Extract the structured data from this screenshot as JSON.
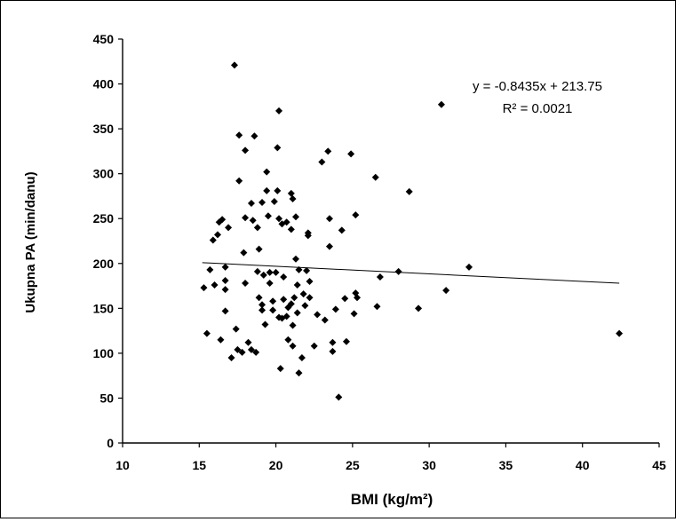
{
  "chart_data": {
    "type": "scatter",
    "title": "",
    "xlabel": "BMI (kg/m²)",
    "ylabel": "Ukupna PA (min/danu)",
    "xlim": [
      10,
      45
    ],
    "ylim": [
      0,
      450
    ],
    "xticks": [
      10,
      15,
      20,
      25,
      30,
      35,
      40,
      45
    ],
    "yticks": [
      0,
      50,
      100,
      150,
      200,
      250,
      300,
      350,
      400,
      450
    ],
    "grid": false,
    "legend": "none",
    "marker": "diamond",
    "marker_color": "#000000",
    "trendline": {
      "type": "linear",
      "slope": -0.8435,
      "intercept": 213.75,
      "x_range": [
        15.2,
        42.4
      ]
    },
    "annotations": [
      "y = -0.8435x + 213.75",
      "R² = 0.0021"
    ],
    "points": [
      [
        15.3,
        173
      ],
      [
        15.5,
        122
      ],
      [
        15.7,
        193
      ],
      [
        15.9,
        226
      ],
      [
        16.0,
        176
      ],
      [
        16.2,
        232
      ],
      [
        16.3,
        246
      ],
      [
        16.4,
        115
      ],
      [
        16.5,
        249
      ],
      [
        16.7,
        181
      ],
      [
        16.7,
        196
      ],
      [
        16.7,
        171
      ],
      [
        16.7,
        147
      ],
      [
        16.9,
        240
      ],
      [
        17.1,
        95
      ],
      [
        17.3,
        421
      ],
      [
        17.4,
        127
      ],
      [
        17.5,
        104
      ],
      [
        17.6,
        292
      ],
      [
        17.6,
        343
      ],
      [
        17.8,
        101
      ],
      [
        17.9,
        212
      ],
      [
        18.0,
        251
      ],
      [
        18.0,
        326
      ],
      [
        18.0,
        178
      ],
      [
        18.2,
        112
      ],
      [
        18.4,
        267
      ],
      [
        18.4,
        104
      ],
      [
        18.5,
        248
      ],
      [
        18.6,
        342
      ],
      [
        18.7,
        101
      ],
      [
        18.8,
        240
      ],
      [
        18.8,
        191
      ],
      [
        18.9,
        162
      ],
      [
        18.9,
        216
      ],
      [
        19.1,
        268
      ],
      [
        19.1,
        154
      ],
      [
        19.1,
        148
      ],
      [
        19.2,
        187
      ],
      [
        19.3,
        132
      ],
      [
        19.4,
        281
      ],
      [
        19.4,
        302
      ],
      [
        19.5,
        253
      ],
      [
        19.6,
        190
      ],
      [
        19.6,
        178
      ],
      [
        19.8,
        148
      ],
      [
        19.8,
        158
      ],
      [
        19.9,
        269
      ],
      [
        20.0,
        190
      ],
      [
        20.1,
        281
      ],
      [
        20.1,
        329
      ],
      [
        20.2,
        370
      ],
      [
        20.2,
        250
      ],
      [
        20.2,
        140
      ],
      [
        20.3,
        83
      ],
      [
        20.4,
        244
      ],
      [
        20.4,
        139
      ],
      [
        20.5,
        185
      ],
      [
        20.5,
        160
      ],
      [
        20.7,
        141
      ],
      [
        20.7,
        246
      ],
      [
        20.8,
        151
      ],
      [
        20.8,
        115
      ],
      [
        21.0,
        238
      ],
      [
        21.0,
        155
      ],
      [
        21.0,
        278
      ],
      [
        21.1,
        272
      ],
      [
        21.1,
        108
      ],
      [
        21.1,
        131
      ],
      [
        21.2,
        162
      ],
      [
        21.3,
        205
      ],
      [
        21.3,
        252
      ],
      [
        21.4,
        176
      ],
      [
        21.4,
        145
      ],
      [
        21.5,
        193
      ],
      [
        21.5,
        78
      ],
      [
        21.7,
        95
      ],
      [
        21.8,
        166
      ],
      [
        21.9,
        153
      ],
      [
        22.0,
        192
      ],
      [
        22.1,
        234
      ],
      [
        22.1,
        231
      ],
      [
        22.2,
        180
      ],
      [
        22.2,
        162
      ],
      [
        22.5,
        108
      ],
      [
        22.7,
        143
      ],
      [
        23.0,
        313
      ],
      [
        23.2,
        137
      ],
      [
        23.4,
        325
      ],
      [
        23.5,
        250
      ],
      [
        23.5,
        219
      ],
      [
        23.7,
        112
      ],
      [
        23.7,
        102
      ],
      [
        23.9,
        149
      ],
      [
        24.1,
        51
      ],
      [
        24.3,
        237
      ],
      [
        24.5,
        161
      ],
      [
        24.6,
        113
      ],
      [
        24.9,
        322
      ],
      [
        25.1,
        144
      ],
      [
        25.2,
        167
      ],
      [
        25.2,
        254
      ],
      [
        25.3,
        162
      ],
      [
        26.5,
        296
      ],
      [
        26.6,
        152
      ],
      [
        26.8,
        185
      ],
      [
        28.0,
        191
      ],
      [
        28.7,
        280
      ],
      [
        29.3,
        150
      ],
      [
        30.8,
        377
      ],
      [
        31.1,
        170
      ],
      [
        32.6,
        196
      ],
      [
        42.4,
        122
      ]
    ]
  }
}
